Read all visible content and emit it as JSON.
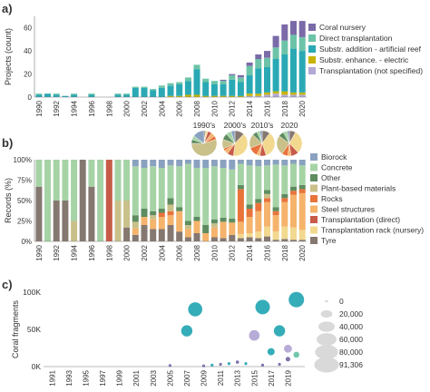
{
  "panels": {
    "a": "a)",
    "b": "b)",
    "c": "c)"
  },
  "chart_data": [
    {
      "type": "bar",
      "stacked": true,
      "ylabel": "Projects (count)",
      "xlabel": "",
      "ylim": [
        0,
        70
      ],
      "yticks": [
        0,
        20,
        40,
        60
      ],
      "xtick_labels": [
        "1990",
        "1992",
        "1994",
        "1996",
        "1998",
        "2000",
        "2002",
        "2004",
        "2006",
        "2008",
        "2010",
        "2012",
        "2014",
        "2016",
        "2018",
        "2020"
      ],
      "legend_position": "right",
      "categories": [
        "1990",
        "1991",
        "1992",
        "1993",
        "1994",
        "1995",
        "1996",
        "1997",
        "1998",
        "1999",
        "2000",
        "2001",
        "2002",
        "2003",
        "2004",
        "2005",
        "2006",
        "2007",
        "2008",
        "2009",
        "2010",
        "2011",
        "2012",
        "2013",
        "2014",
        "2015",
        "2016",
        "2017",
        "2018",
        "2019",
        "2020"
      ],
      "series": [
        {
          "name": "Transplantation (not specified)",
          "color": "#b3a8d6",
          "values": [
            0,
            0,
            0,
            0,
            0,
            0,
            0,
            0,
            0,
            0,
            0,
            0,
            0,
            0,
            0,
            0,
            0,
            0,
            0,
            0,
            0,
            0,
            0,
            0,
            1,
            1,
            2,
            3,
            2,
            2,
            2
          ]
        },
        {
          "name": "Substr. enhance. - electric",
          "color": "#c8b400",
          "values": [
            0,
            0,
            0,
            0,
            0,
            0,
            0,
            0,
            0,
            0,
            0,
            0,
            0,
            0,
            0,
            1,
            1,
            2,
            2,
            1,
            1,
            1,
            1,
            1,
            2,
            2,
            2,
            2,
            3,
            2,
            2
          ]
        },
        {
          "name": "Substr. addition - artificial reef",
          "color": "#2aa9b5",
          "values": [
            2,
            3,
            2,
            1,
            2,
            0,
            2,
            0,
            0,
            2,
            2,
            8,
            8,
            6,
            8,
            9,
            10,
            12,
            22,
            12,
            10,
            10,
            14,
            12,
            16,
            22,
            22,
            28,
            32,
            38,
            36
          ]
        },
        {
          "name": "Direct transplantation",
          "color": "#6cc3a8",
          "values": [
            1,
            0,
            1,
            0,
            1,
            0,
            1,
            0,
            0,
            1,
            1,
            1,
            1,
            1,
            2,
            2,
            2,
            3,
            4,
            3,
            3,
            3,
            4,
            4,
            8,
            8,
            8,
            10,
            12,
            12,
            12
          ]
        },
        {
          "name": "Coral nursery",
          "color": "#7b6aa8",
          "values": [
            0,
            0,
            0,
            0,
            0,
            0,
            0,
            0,
            0,
            0,
            0,
            0,
            0,
            0,
            0,
            0,
            0,
            0,
            0,
            0,
            0,
            1,
            1,
            2,
            3,
            4,
            6,
            10,
            14,
            12,
            14
          ]
        }
      ]
    },
    {
      "type": "bar",
      "stacked": true,
      "percent": true,
      "ylabel": "Records (%)",
      "ylim": [
        0,
        100
      ],
      "yticks": [
        "0%",
        "25%",
        "50%",
        "75%",
        "100%"
      ],
      "xtick_labels": [
        "1990",
        "1992",
        "1994",
        "1996",
        "1998",
        "2000",
        "2002",
        "2004",
        "2006",
        "2008",
        "2010",
        "2012",
        "2014",
        "2016",
        "2018",
        "2020"
      ],
      "legend_position": "right",
      "inset_pies": {
        "labels": [
          "1990's",
          "2000's",
          "2010's",
          "2020"
        ],
        "values": [
          [
            2,
            3,
            5,
            5,
            5,
            55,
            5,
            5,
            15
          ],
          [
            12,
            40,
            8,
            5,
            3,
            12,
            8,
            7,
            5
          ],
          [
            10,
            35,
            8,
            4,
            12,
            18,
            6,
            4,
            3
          ],
          [
            8,
            30,
            10,
            4,
            8,
            25,
            7,
            5,
            3
          ]
        ]
      },
      "categories": [
        "1990",
        "1991",
        "1992",
        "1993",
        "1994",
        "1995",
        "1996",
        "1997",
        "1998",
        "1999",
        "2000",
        "2001",
        "2002",
        "2003",
        "2004",
        "2005",
        "2006",
        "2007",
        "2008",
        "2009",
        "2010",
        "2011",
        "2012",
        "2013",
        "2014",
        "2015",
        "2016",
        "2017",
        "2018",
        "2019",
        "2020"
      ],
      "series": [
        {
          "name": "Tyre",
          "color": "#857870",
          "values": [
            67,
            0,
            50,
            50,
            0,
            100,
            67,
            0,
            0,
            0,
            17,
            8,
            20,
            15,
            15,
            20,
            12,
            5,
            10,
            0,
            5,
            4,
            8,
            4,
            5,
            4,
            6,
            2,
            3,
            2,
            2
          ]
        },
        {
          "name": "Transplantation rack (nursery)",
          "color": "#f2d98f",
          "values": [
            0,
            0,
            0,
            0,
            0,
            0,
            0,
            0,
            0,
            0,
            0,
            0,
            0,
            0,
            0,
            0,
            0,
            0,
            0,
            0,
            0,
            0,
            0,
            5,
            5,
            8,
            12,
            10,
            15,
            15,
            12
          ]
        },
        {
          "name": "Transplantation (direct)",
          "color": "#c75b48",
          "values": [
            0,
            0,
            0,
            0,
            0,
            0,
            0,
            0,
            100,
            0,
            0,
            0,
            0,
            0,
            0,
            0,
            0,
            0,
            0,
            0,
            0,
            0,
            0,
            0,
            0,
            0,
            0,
            0,
            0,
            0,
            0
          ]
        },
        {
          "name": "Steel structures",
          "color": "#f5b36b",
          "values": [
            0,
            0,
            0,
            0,
            0,
            0,
            0,
            0,
            0,
            0,
            0,
            8,
            10,
            12,
            15,
            12,
            25,
            10,
            15,
            10,
            12,
            20,
            15,
            15,
            20,
            25,
            30,
            20,
            30,
            40,
            45
          ]
        },
        {
          "name": "Rocks",
          "color": "#e8743b",
          "values": [
            0,
            0,
            0,
            0,
            0,
            0,
            0,
            0,
            0,
            0,
            0,
            0,
            0,
            0,
            5,
            5,
            0,
            0,
            0,
            0,
            0,
            0,
            0,
            40,
            10,
            10,
            5,
            5,
            5,
            5,
            5
          ]
        },
        {
          "name": "Plant-based materials",
          "color": "#c9c08a",
          "values": [
            0,
            0,
            0,
            0,
            25,
            0,
            0,
            0,
            0,
            50,
            33,
            8,
            0,
            5,
            0,
            8,
            0,
            5,
            0,
            0,
            5,
            0,
            0,
            0,
            0,
            0,
            5,
            0,
            0,
            0,
            0
          ]
        },
        {
          "name": "Other",
          "color": "#5e8c60",
          "values": [
            0,
            0,
            0,
            0,
            0,
            0,
            0,
            0,
            0,
            0,
            0,
            8,
            10,
            5,
            5,
            8,
            5,
            5,
            5,
            10,
            5,
            5,
            5,
            5,
            5,
            5,
            5,
            5,
            5,
            5,
            5
          ]
        },
        {
          "name": "Concrete",
          "color": "#a6d3a6",
          "values": [
            33,
            100,
            50,
            50,
            75,
            0,
            33,
            100,
            0,
            50,
            50,
            60,
            50,
            55,
            50,
            40,
            50,
            70,
            60,
            70,
            65,
            61,
            60,
            26,
            48,
            40,
            30,
            52,
            35,
            28,
            24
          ]
        },
        {
          "name": "Biorock",
          "color": "#8aa2c0",
          "values": [
            0,
            0,
            0,
            0,
            0,
            0,
            0,
            0,
            0,
            0,
            0,
            8,
            10,
            8,
            10,
            7,
            8,
            5,
            10,
            10,
            8,
            10,
            12,
            5,
            7,
            8,
            7,
            6,
            7,
            5,
            7
          ]
        }
      ]
    },
    {
      "type": "scatter",
      "ylabel": "Coral fragments",
      "ylim": [
        0,
        100000
      ],
      "yticks": [
        "0K",
        "50K",
        "100K"
      ],
      "xtick_labels": [
        "1991",
        "1993",
        "1995",
        "1997",
        "1999",
        "2001",
        "2003",
        "2005",
        "2007",
        "2009",
        "2011",
        "2013",
        "2015",
        "2017",
        "2019"
      ],
      "x_range": [
        1990,
        2021
      ],
      "size_legend": [
        "0",
        "20,000",
        "40,000",
        "60,000",
        "80,000",
        "91,306"
      ],
      "size_legend_max": 91306,
      "points": [
        {
          "x": 2005,
          "y": 1500,
          "size": 2000,
          "color": "#7b6aa8"
        },
        {
          "x": 2007,
          "y": 48000,
          "size": 48000,
          "color": "#2aa9b5"
        },
        {
          "x": 2008,
          "y": 77000,
          "size": 77000,
          "color": "#2aa9b5"
        },
        {
          "x": 2009,
          "y": 1000,
          "size": 1500,
          "color": "#7b6aa8"
        },
        {
          "x": 2010,
          "y": 2000,
          "size": 2500,
          "color": "#2aa9b5"
        },
        {
          "x": 2011,
          "y": 3000,
          "size": 2500,
          "color": "#7b6aa8"
        },
        {
          "x": 2012,
          "y": 4000,
          "size": 3000,
          "color": "#2aa9b5"
        },
        {
          "x": 2013,
          "y": 6000,
          "size": 4000,
          "color": "#7b6aa8"
        },
        {
          "x": 2014,
          "y": 4000,
          "size": 3000,
          "color": "#2aa9b5"
        },
        {
          "x": 2015,
          "y": 42000,
          "size": 42000,
          "color": "#b3a8d6"
        },
        {
          "x": 2016,
          "y": 80000,
          "size": 80000,
          "color": "#2aa9b5"
        },
        {
          "x": 2016,
          "y": 2000,
          "size": 2500,
          "color": "#7b6aa8"
        },
        {
          "x": 2017,
          "y": 20000,
          "size": 20000,
          "color": "#2aa9b5"
        },
        {
          "x": 2018,
          "y": 48000,
          "size": 48000,
          "color": "#2aa9b5"
        },
        {
          "x": 2018,
          "y": 3000,
          "size": 3000,
          "color": "#7b6aa8"
        },
        {
          "x": 2019,
          "y": 24000,
          "size": 24000,
          "color": "#b3a8d6"
        },
        {
          "x": 2019,
          "y": 10000,
          "size": 8000,
          "color": "#7b6aa8"
        },
        {
          "x": 2020,
          "y": 16000,
          "size": 14000,
          "color": "#6cc3a8"
        },
        {
          "x": 2020,
          "y": 90000,
          "size": 91306,
          "color": "#2aa9b5"
        }
      ]
    }
  ]
}
